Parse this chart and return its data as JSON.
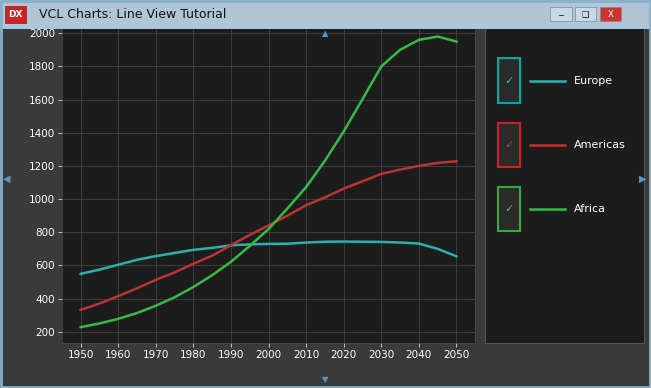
{
  "title": "VCL Charts: Line View Tutorial",
  "bg_outer": "#3a3a3a",
  "bg_chart": "#1c1c1c",
  "title_bar_color": "#aec6d8",
  "x_ticks": [
    1950,
    1960,
    1970,
    1980,
    1990,
    2000,
    2010,
    2020,
    2030,
    2040,
    2050
  ],
  "y_ticks": [
    200,
    400,
    600,
    800,
    1000,
    1200,
    1400,
    1600,
    1800,
    2000
  ],
  "ylim": [
    130,
    2060
  ],
  "xlim": [
    1945,
    2055
  ],
  "europe_x": [
    1950,
    1955,
    1960,
    1965,
    1970,
    1975,
    1980,
    1985,
    1990,
    1995,
    2000,
    2005,
    2010,
    2015,
    2020,
    2025,
    2030,
    2035,
    2040,
    2045,
    2050
  ],
  "europe_y": [
    549,
    575,
    604,
    634,
    656,
    675,
    694,
    706,
    721,
    727,
    730,
    731,
    738,
    743,
    744,
    743,
    742,
    738,
    732,
    700,
    655
  ],
  "americas_x": [
    1950,
    1955,
    1960,
    1965,
    1970,
    1975,
    1980,
    1985,
    1990,
    1995,
    2000,
    2005,
    2010,
    2015,
    2020,
    2025,
    2030,
    2035,
    2040,
    2045,
    2050
  ],
  "americas_y": [
    332,
    370,
    415,
    462,
    513,
    558,
    610,
    659,
    722,
    784,
    841,
    900,
    963,
    1010,
    1063,
    1107,
    1152,
    1178,
    1200,
    1218,
    1228
  ],
  "africa_x": [
    1950,
    1955,
    1960,
    1965,
    1970,
    1975,
    1980,
    1985,
    1990,
    1995,
    2000,
    2005,
    2010,
    2015,
    2020,
    2025,
    2030,
    2035,
    2040,
    2045,
    2050
  ],
  "africa_y": [
    228,
    250,
    278,
    313,
    357,
    408,
    470,
    541,
    622,
    718,
    819,
    943,
    1073,
    1231,
    1408,
    1603,
    1800,
    1900,
    1960,
    1980,
    1950
  ],
  "europe_color": "#2ab0b0",
  "americas_color": "#bb3333",
  "africa_color": "#33bb44",
  "grid_color": "#4a4a4a",
  "text_color": "#ffffff",
  "legend_bg": "#1c1c1c",
  "legend_border": "#555555",
  "europe_check_color": "#00cccc",
  "americas_check_color": "#cc3333",
  "africa_check_color": "#33cc55",
  "europe_box_border": "#00aaaa",
  "americas_box_border": "#cc2222",
  "africa_box_border": "#33aa44",
  "window_border": "#8ab0c8",
  "scrollbar_color": "#5599cc"
}
